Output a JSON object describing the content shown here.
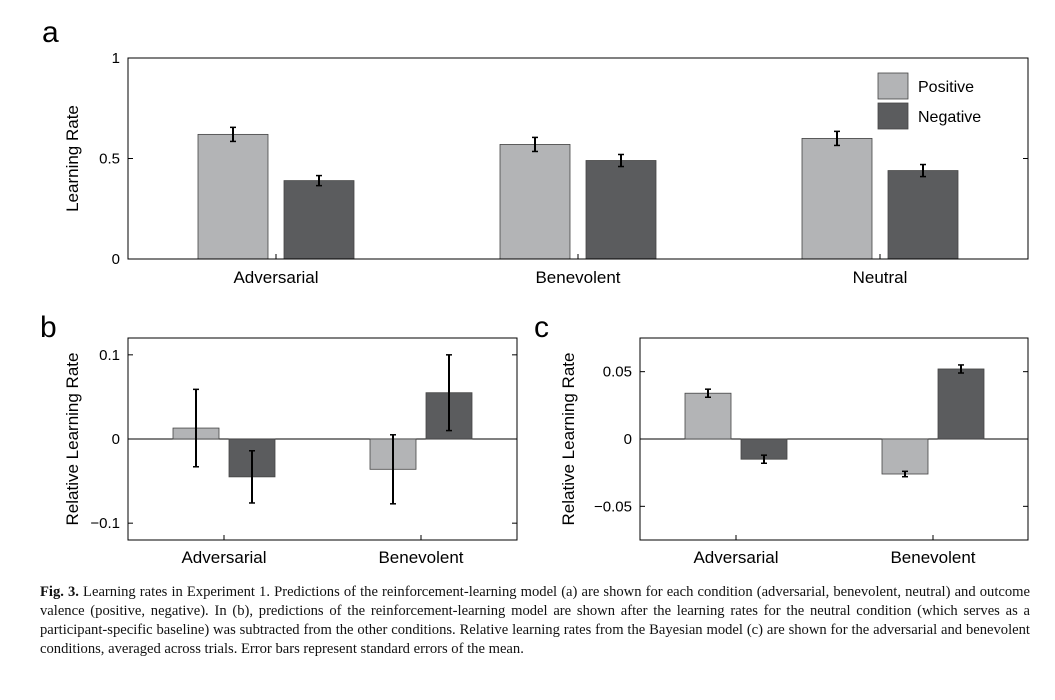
{
  "colors": {
    "positive": "#b3b4b6",
    "negative": "#5b5c5e"
  },
  "chart_data": [
    {
      "panel_label": "a",
      "type": "bar",
      "categories": [
        "Adversarial",
        "Benevolent",
        "Neutral"
      ],
      "series": [
        {
          "name": "Positive",
          "values": [
            0.62,
            0.57,
            0.6
          ],
          "errors": [
            0.035,
            0.035,
            0.035
          ]
        },
        {
          "name": "Negative",
          "values": [
            0.39,
            0.49,
            0.44
          ],
          "errors": [
            0.025,
            0.03,
            0.03
          ]
        }
      ],
      "ylabel": "Learning Rate",
      "ylim": [
        0,
        1
      ],
      "yticks": [
        "0",
        "0.5",
        "1"
      ],
      "ytick_values": [
        0,
        0.5,
        1
      ],
      "legend": "top-right"
    },
    {
      "panel_label": "b",
      "type": "bar",
      "categories": [
        "Adversarial",
        "Benevolent"
      ],
      "series": [
        {
          "name": "Positive",
          "values": [
            0.013,
            -0.036
          ],
          "errors": [
            0.046,
            0.041
          ]
        },
        {
          "name": "Negative",
          "values": [
            -0.045,
            0.055
          ],
          "errors": [
            0.031,
            0.045
          ]
        }
      ],
      "ylabel": "Relative Learning Rate",
      "ylim": [
        -0.12,
        0.12
      ],
      "yticks": [
        "−0.1",
        "0",
        "0.1"
      ],
      "ytick_values": [
        -0.1,
        0,
        0.1
      ]
    },
    {
      "panel_label": "c",
      "type": "bar",
      "categories": [
        "Adversarial",
        "Benevolent"
      ],
      "series": [
        {
          "name": "Positive",
          "values": [
            0.034,
            -0.026
          ],
          "errors": [
            0.003,
            0.002
          ]
        },
        {
          "name": "Negative",
          "values": [
            -0.015,
            0.052
          ],
          "errors": [
            0.003,
            0.003
          ]
        }
      ],
      "ylabel": "Relative Learning Rate",
      "ylim": [
        -0.075,
        0.075
      ],
      "yticks": [
        "−0.05",
        "0",
        "0.05"
      ],
      "ytick_values": [
        -0.05,
        0,
        0.05
      ]
    }
  ],
  "caption": {
    "label": "Fig. 3.",
    "text": "Learning rates in Experiment 1. Predictions of the reinforcement-learning model (a) are shown for each condition (adversarial, benevolent, neutral) and outcome valence (positive, negative). In (b), predictions of the reinforcement-learning model are shown after the learning rates for the neutral condition (which serves as a participant-specific baseline) was subtracted from the other conditions. Relative learning rates from the Bayesian model (c) are shown for the adversarial and benevolent conditions, averaged across trials. Error bars represent standard errors of the mean."
  }
}
